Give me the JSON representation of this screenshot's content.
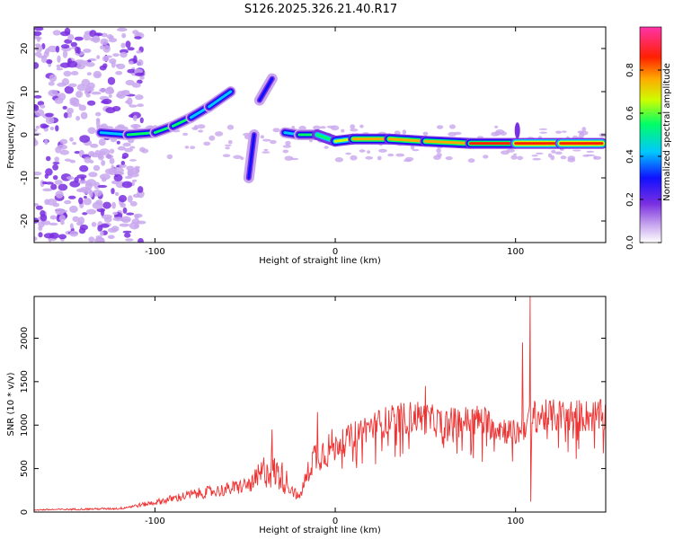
{
  "figure_title": "S126.2025.326.21.40.R17",
  "chart_data": [
    {
      "type": "heatmap",
      "title": "S126.2025.326.21.40.R17",
      "xlabel": "Height of straight line (km)",
      "ylabel": "Frequency (Hz)",
      "xlim": [
        -167,
        150
      ],
      "ylim": [
        -25,
        25
      ],
      "x_ticks": [
        -100,
        0,
        100
      ],
      "y_ticks": [
        -20,
        -10,
        0,
        10,
        20
      ],
      "colorbar": {
        "label": "Normalized spectral amplitude",
        "range": [
          0,
          1
        ],
        "ticks": [
          0.0,
          0.2,
          0.4,
          0.6,
          0.8
        ],
        "colors": [
          "#ffffff",
          "#c9a8ee",
          "#7a2fe0",
          "#1010ff",
          "#00c8ff",
          "#00ff66",
          "#ccff00",
          "#ffaa00",
          "#ff2000",
          "#ff33aa"
        ]
      },
      "ridge": [
        {
          "x": -130,
          "f": 0.5,
          "a": 0.45
        },
        {
          "x": -115,
          "f": 0.0,
          "a": 0.5
        },
        {
          "x": -100,
          "f": 0.5,
          "a": 0.55
        },
        {
          "x": -90,
          "f": 2.0,
          "a": 0.5
        },
        {
          "x": -80,
          "f": 4.0,
          "a": 0.5
        },
        {
          "x": -70,
          "f": 6.5,
          "a": 0.45
        },
        {
          "x": -58,
          "f": 10.0,
          "a": 0.4
        },
        {
          "x": -42,
          "f": 8.0,
          "a": 0.35
        },
        {
          "x": -35,
          "f": 13.0,
          "a": 0.3
        },
        {
          "x": -45,
          "f": 0.0,
          "a": 0.4
        },
        {
          "x": -48,
          "f": -10.0,
          "a": 0.3
        },
        {
          "x": -28,
          "f": 0.5,
          "a": 0.45
        },
        {
          "x": -20,
          "f": 0.0,
          "a": 0.5
        },
        {
          "x": -10,
          "f": 0.0,
          "a": 0.6
        },
        {
          "x": 0,
          "f": -1.5,
          "a": 0.55
        },
        {
          "x": 10,
          "f": -1.0,
          "a": 0.7
        },
        {
          "x": 30,
          "f": -1.0,
          "a": 0.75
        },
        {
          "x": 50,
          "f": -1.5,
          "a": 0.8
        },
        {
          "x": 75,
          "f": -2.0,
          "a": 0.85
        },
        {
          "x": 100,
          "f": -2.0,
          "a": 0.85
        },
        {
          "x": 125,
          "f": -2.0,
          "a": 0.9
        },
        {
          "x": 148,
          "f": -2.0,
          "a": 0.9
        }
      ]
    },
    {
      "type": "line",
      "xlabel": "Height of straight line (km)",
      "ylabel": "SNR (10 * v/v)",
      "xlim": [
        -167,
        150
      ],
      "ylim": [
        0,
        2480
      ],
      "x_ticks": [
        -100,
        0,
        100
      ],
      "y_ticks": [
        0,
        500,
        1000,
        1500,
        2000
      ],
      "color": "#ee3333",
      "envelope": [
        {
          "x": -167,
          "y": 25
        },
        {
          "x": -120,
          "y": 40
        },
        {
          "x": -100,
          "y": 110
        },
        {
          "x": -80,
          "y": 200
        },
        {
          "x": -60,
          "y": 260
        },
        {
          "x": -45,
          "y": 330
        },
        {
          "x": -38,
          "y": 500
        },
        {
          "x": -30,
          "y": 420
        },
        {
          "x": -20,
          "y": 160
        },
        {
          "x": -12,
          "y": 640
        },
        {
          "x": 0,
          "y": 760
        },
        {
          "x": 15,
          "y": 950
        },
        {
          "x": 30,
          "y": 1050
        },
        {
          "x": 45,
          "y": 1100
        },
        {
          "x": 60,
          "y": 1020
        },
        {
          "x": 80,
          "y": 1060
        },
        {
          "x": 100,
          "y": 900
        },
        {
          "x": 110,
          "y": 1100
        },
        {
          "x": 130,
          "y": 1110
        },
        {
          "x": 150,
          "y": 1100
        }
      ],
      "spikes": [
        {
          "x": -35,
          "y": 950
        },
        {
          "x": -10,
          "y": 1150
        },
        {
          "x": 50,
          "y": 1450
        },
        {
          "x": 104,
          "y": 1950
        },
        {
          "x": 108,
          "y": 2480
        },
        {
          "x": 108.5,
          "y": 120
        }
      ]
    }
  ]
}
